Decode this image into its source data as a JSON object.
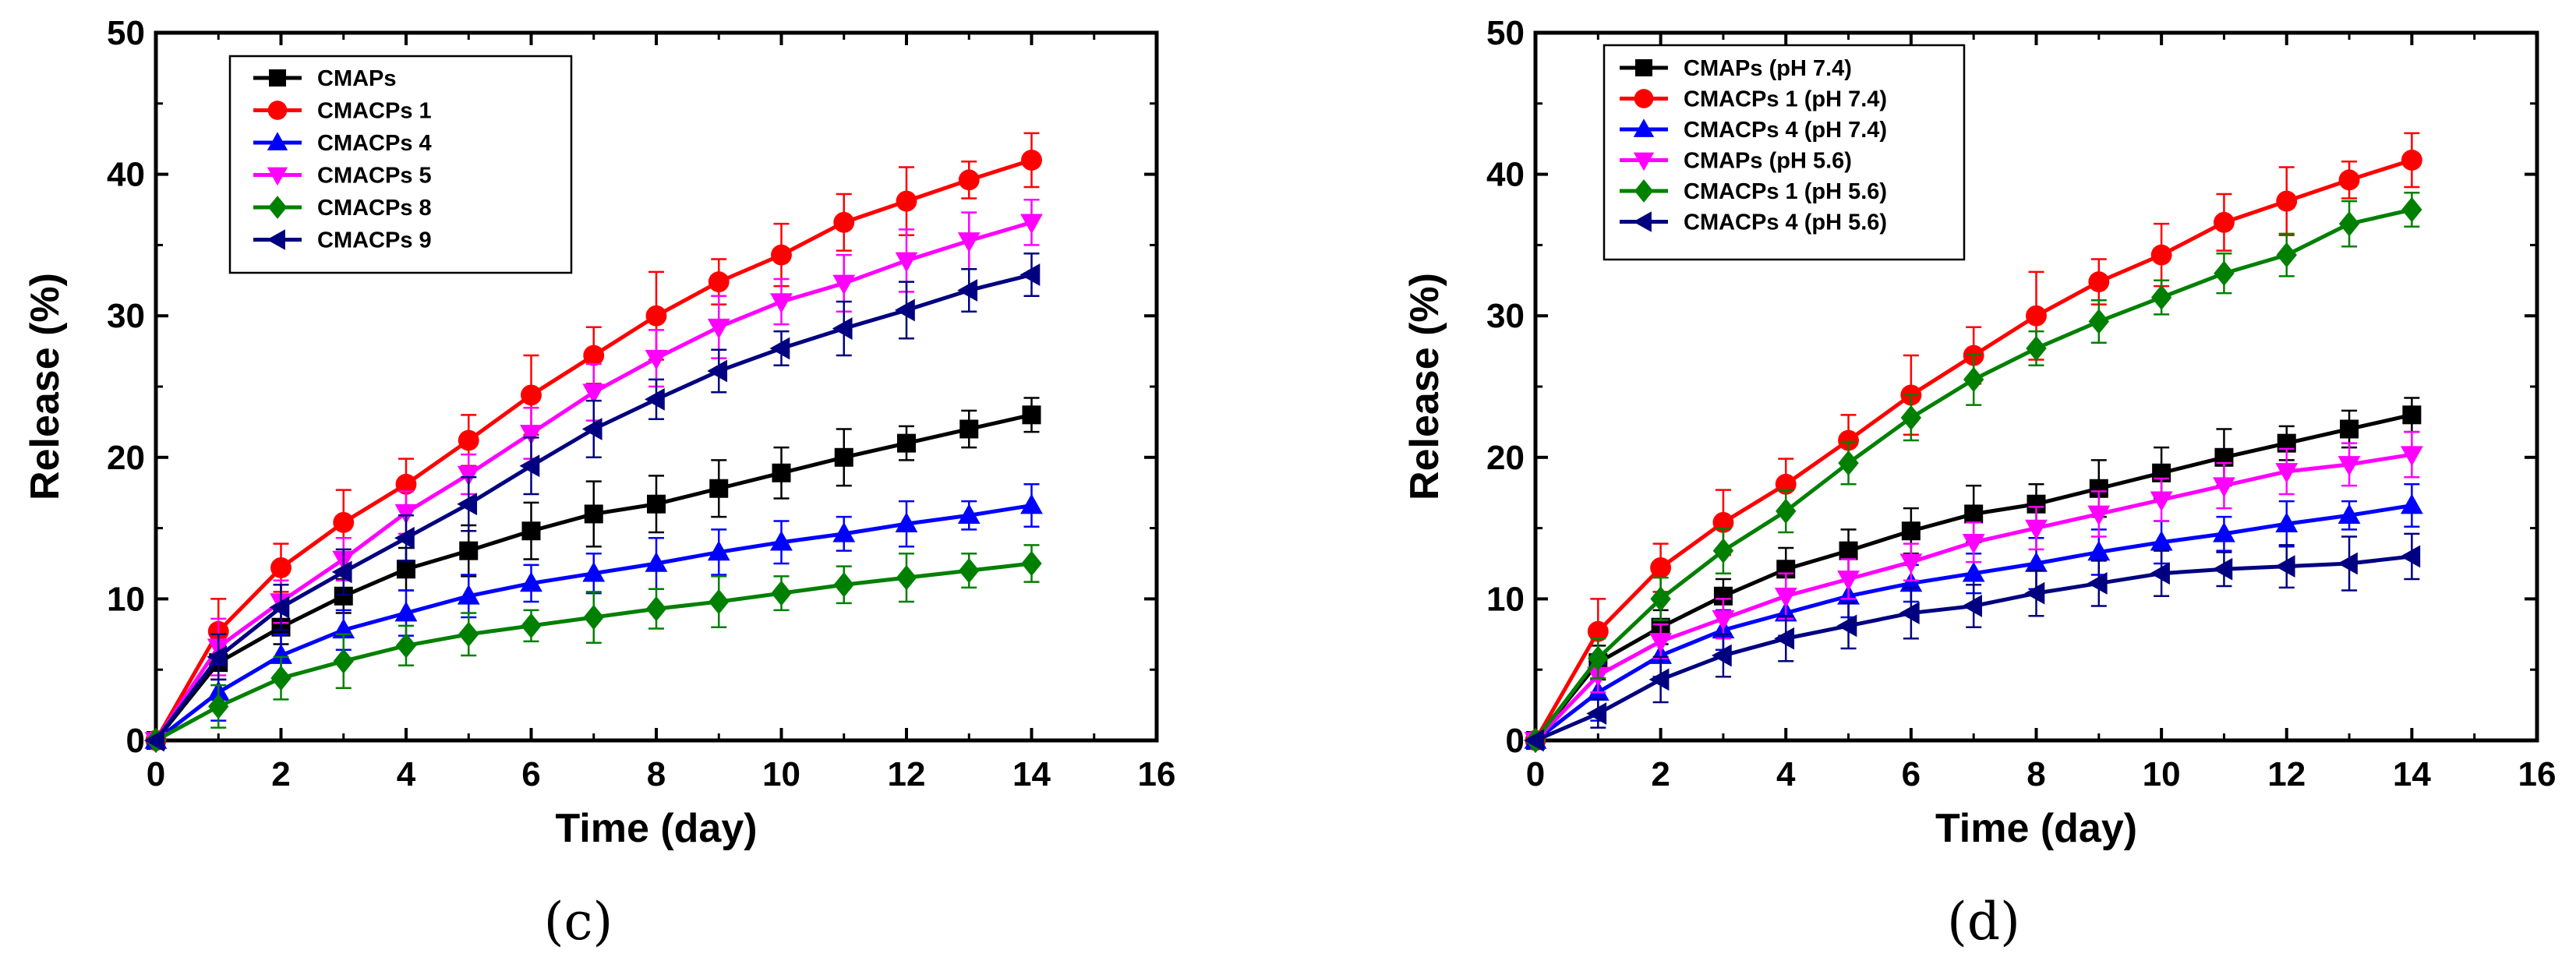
{
  "chart_data": [
    {
      "type": "line",
      "panel_label": "(c)",
      "xlabel": "Time (day)",
      "ylabel": "Release (%)",
      "xlim": [
        0,
        16
      ],
      "ylim": [
        0,
        50
      ],
      "xticks": [
        0,
        2,
        4,
        6,
        8,
        10,
        12,
        14,
        16
      ],
      "yticks": [
        0,
        10,
        20,
        30,
        40,
        50
      ],
      "legend_position": "top-left",
      "x": [
        0,
        1,
        2,
        3,
        4,
        5,
        6,
        7,
        8,
        9,
        10,
        11,
        12,
        13,
        14
      ],
      "series": [
        {
          "name": "CMAPs",
          "color": "#000000",
          "marker": "square",
          "values": [
            0,
            5.5,
            8.0,
            10.2,
            12.1,
            13.4,
            14.8,
            16.0,
            16.7,
            17.8,
            18.9,
            20.0,
            21.0,
            22.0,
            23.0
          ],
          "errors": [
            0,
            1.2,
            1.2,
            1.2,
            1.5,
            1.8,
            2.0,
            2.3,
            2.0,
            2.0,
            1.8,
            2.0,
            1.2,
            1.3,
            1.2
          ]
        },
        {
          "name": "CMACPs 1",
          "color": "#ff0000",
          "marker": "circle",
          "values": [
            0,
            7.7,
            12.2,
            15.4,
            18.1,
            21.2,
            24.4,
            27.2,
            30.0,
            32.4,
            34.3,
            36.6,
            38.1,
            39.6,
            41.0
          ],
          "errors": [
            0,
            2.3,
            1.7,
            2.3,
            1.8,
            1.8,
            2.8,
            2.0,
            3.1,
            1.6,
            2.2,
            2.0,
            2.4,
            1.3,
            1.9
          ]
        },
        {
          "name": "CMACPs 4",
          "color": "#0000ff",
          "marker": "triangle-up",
          "values": [
            0,
            3.4,
            6.0,
            7.8,
            9.0,
            10.2,
            11.1,
            11.8,
            12.5,
            13.3,
            14.0,
            14.6,
            15.3,
            15.9,
            16.6
          ],
          "errors": [
            0,
            2.0,
            1.5,
            1.4,
            1.6,
            1.5,
            1.3,
            1.4,
            1.8,
            1.6,
            1.5,
            1.2,
            1.6,
            1.0,
            1.5
          ]
        },
        {
          "name": "CMACPs 5",
          "color": "#ff00ff",
          "marker": "triangle-down",
          "values": [
            0,
            6.6,
            9.8,
            12.8,
            16.1,
            18.8,
            21.7,
            24.6,
            27.0,
            29.2,
            31.0,
            32.3,
            33.9,
            35.3,
            36.6
          ],
          "errors": [
            0,
            2.0,
            1.5,
            1.5,
            1.5,
            1.4,
            1.8,
            2.0,
            2.0,
            2.2,
            1.6,
            2.0,
            2.2,
            2.0,
            1.6
          ]
        },
        {
          "name": "CMACPs 8",
          "color": "#008000",
          "marker": "diamond",
          "values": [
            0,
            2.4,
            4.4,
            5.6,
            6.7,
            7.5,
            8.1,
            8.7,
            9.3,
            9.8,
            10.4,
            11.0,
            11.5,
            12.0,
            12.5
          ],
          "errors": [
            0,
            1.5,
            1.5,
            1.9,
            1.4,
            1.5,
            1.1,
            1.8,
            1.4,
            1.8,
            1.2,
            1.3,
            1.7,
            1.2,
            1.3
          ]
        },
        {
          "name": "CMACPs 9",
          "color": "#000080",
          "marker": "triangle-left",
          "values": [
            0,
            5.9,
            9.4,
            11.9,
            14.3,
            16.7,
            19.4,
            22.0,
            24.1,
            26.1,
            27.7,
            29.1,
            30.4,
            31.8,
            32.9
          ],
          "errors": [
            0,
            1.6,
            1.6,
            1.6,
            1.6,
            1.9,
            2.0,
            2.0,
            1.4,
            1.5,
            1.2,
            1.9,
            2.0,
            1.5,
            1.5
          ]
        }
      ]
    },
    {
      "type": "line",
      "panel_label": "(d)",
      "xlabel": "Time (day)",
      "ylabel": "Release (%)",
      "xlim": [
        0,
        16
      ],
      "ylim": [
        0,
        50
      ],
      "xticks": [
        0,
        2,
        4,
        6,
        8,
        10,
        12,
        14,
        16
      ],
      "yticks": [
        0,
        10,
        20,
        30,
        40,
        50
      ],
      "legend_position": "top-left",
      "x": [
        0,
        1,
        2,
        3,
        4,
        5,
        6,
        7,
        8,
        9,
        10,
        11,
        12,
        13,
        14
      ],
      "series": [
        {
          "name": "CMAPs (pH 7.4)",
          "color": "#000000",
          "marker": "square",
          "values": [
            0,
            5.5,
            8.0,
            10.2,
            12.1,
            13.4,
            14.8,
            16.0,
            16.7,
            17.8,
            18.9,
            20.0,
            21.0,
            22.0,
            23.0
          ],
          "errors": [
            0,
            1.2,
            1.2,
            1.2,
            1.5,
            1.5,
            1.6,
            2.0,
            1.4,
            2.0,
            1.8,
            2.0,
            1.2,
            1.3,
            1.2
          ]
        },
        {
          "name": "CMACPs 1 (pH 7.4)",
          "color": "#ff0000",
          "marker": "circle",
          "values": [
            0,
            7.7,
            12.2,
            15.4,
            18.1,
            21.2,
            24.4,
            27.2,
            30.0,
            32.4,
            34.3,
            36.6,
            38.1,
            39.6,
            41.0
          ],
          "errors": [
            0,
            2.3,
            1.7,
            2.3,
            1.8,
            1.8,
            2.8,
            2.0,
            3.1,
            1.6,
            2.2,
            2.0,
            2.4,
            1.3,
            1.9
          ]
        },
        {
          "name": "CMACPs 4 (pH 7.4)",
          "color": "#0000ff",
          "marker": "triangle-up",
          "values": [
            0,
            3.4,
            6.0,
            7.8,
            9.0,
            10.2,
            11.1,
            11.8,
            12.5,
            13.3,
            14.0,
            14.6,
            15.3,
            15.9,
            16.6
          ],
          "errors": [
            0,
            2.0,
            1.5,
            1.4,
            1.6,
            1.5,
            1.3,
            1.4,
            1.8,
            1.6,
            1.5,
            1.2,
            1.6,
            1.0,
            1.5
          ]
        },
        {
          "name": "CMAPs (pH 5.6)",
          "color": "#ff00ff",
          "marker": "triangle-down",
          "values": [
            0,
            4.6,
            7.0,
            8.6,
            10.2,
            11.4,
            12.6,
            14.0,
            15.0,
            16.0,
            17.0,
            18.0,
            19.0,
            19.5,
            20.2
          ],
          "errors": [
            0,
            1.2,
            1.2,
            1.4,
            1.6,
            1.4,
            1.3,
            1.4,
            1.5,
            1.6,
            1.5,
            1.6,
            1.6,
            1.5,
            1.6
          ]
        },
        {
          "name": "CMACPs 1 (pH 5.6)",
          "color": "#008000",
          "marker": "diamond",
          "values": [
            0,
            5.8,
            10.0,
            13.4,
            16.2,
            19.6,
            22.8,
            25.5,
            27.7,
            29.6,
            31.3,
            33.0,
            34.3,
            36.5,
            37.5
          ],
          "errors": [
            0,
            1.4,
            1.5,
            1.6,
            1.5,
            1.5,
            1.6,
            1.8,
            1.2,
            1.5,
            1.2,
            1.4,
            1.5,
            1.6,
            1.2
          ]
        },
        {
          "name": "CMACPs 4 (pH 5.6)",
          "color": "#000080",
          "marker": "triangle-left",
          "values": [
            0,
            1.9,
            4.3,
            6.0,
            7.2,
            8.1,
            9.0,
            9.5,
            10.4,
            11.1,
            11.8,
            12.1,
            12.3,
            12.5,
            13.0
          ],
          "errors": [
            0,
            1.0,
            1.6,
            1.5,
            1.6,
            1.6,
            1.8,
            1.5,
            1.6,
            1.6,
            1.6,
            1.2,
            1.5,
            1.9,
            1.6
          ]
        }
      ]
    }
  ]
}
